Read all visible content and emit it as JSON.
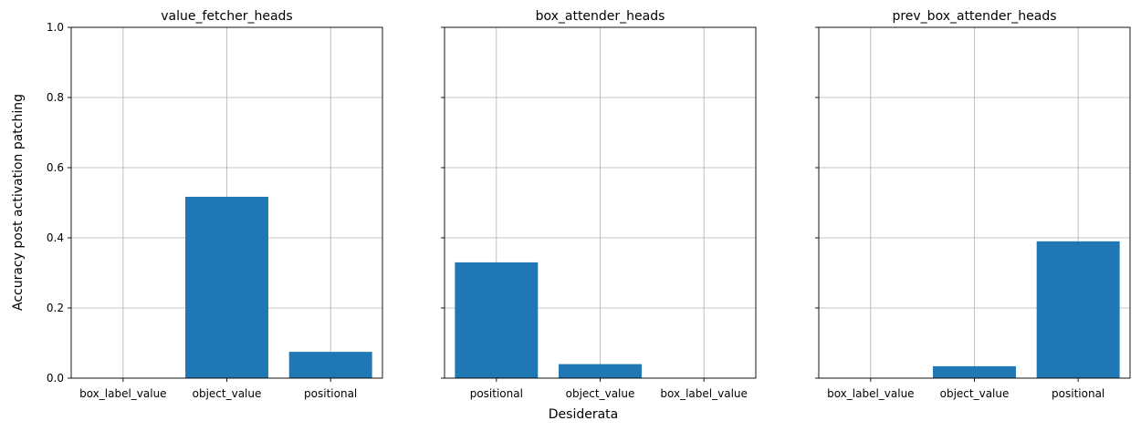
{
  "figure": {
    "ylabel": "Accuracy post activation patching",
    "xlabel": "Desiderata"
  },
  "chart_data": [
    {
      "type": "bar",
      "title": "value_fetcher_heads",
      "categories": [
        "box_label_value",
        "object_value",
        "positional"
      ],
      "values": [
        0.0,
        0.517,
        0.075
      ],
      "ylim": [
        0,
        1
      ],
      "yticks": [
        "0.0",
        "0.2",
        "0.4",
        "0.6",
        "0.8",
        "1.0"
      ],
      "grid": true,
      "color": "#1f77b4"
    },
    {
      "type": "bar",
      "title": "box_attender_heads",
      "categories": [
        "positional",
        "object_value",
        "box_label_value"
      ],
      "values": [
        0.33,
        0.04,
        0.0
      ],
      "ylim": [
        0,
        1
      ],
      "yticks": [
        "0.0",
        "0.2",
        "0.4",
        "0.6",
        "0.8",
        "1.0"
      ],
      "grid": true,
      "color": "#1f77b4"
    },
    {
      "type": "bar",
      "title": "prev_box_attender_heads",
      "categories": [
        "box_label_value",
        "object_value",
        "positional"
      ],
      "values": [
        0.0,
        0.034,
        0.39
      ],
      "ylim": [
        0,
        1
      ],
      "yticks": [
        "0.0",
        "0.2",
        "0.4",
        "0.6",
        "0.8",
        "1.0"
      ],
      "grid": true,
      "color": "#1f77b4"
    }
  ]
}
